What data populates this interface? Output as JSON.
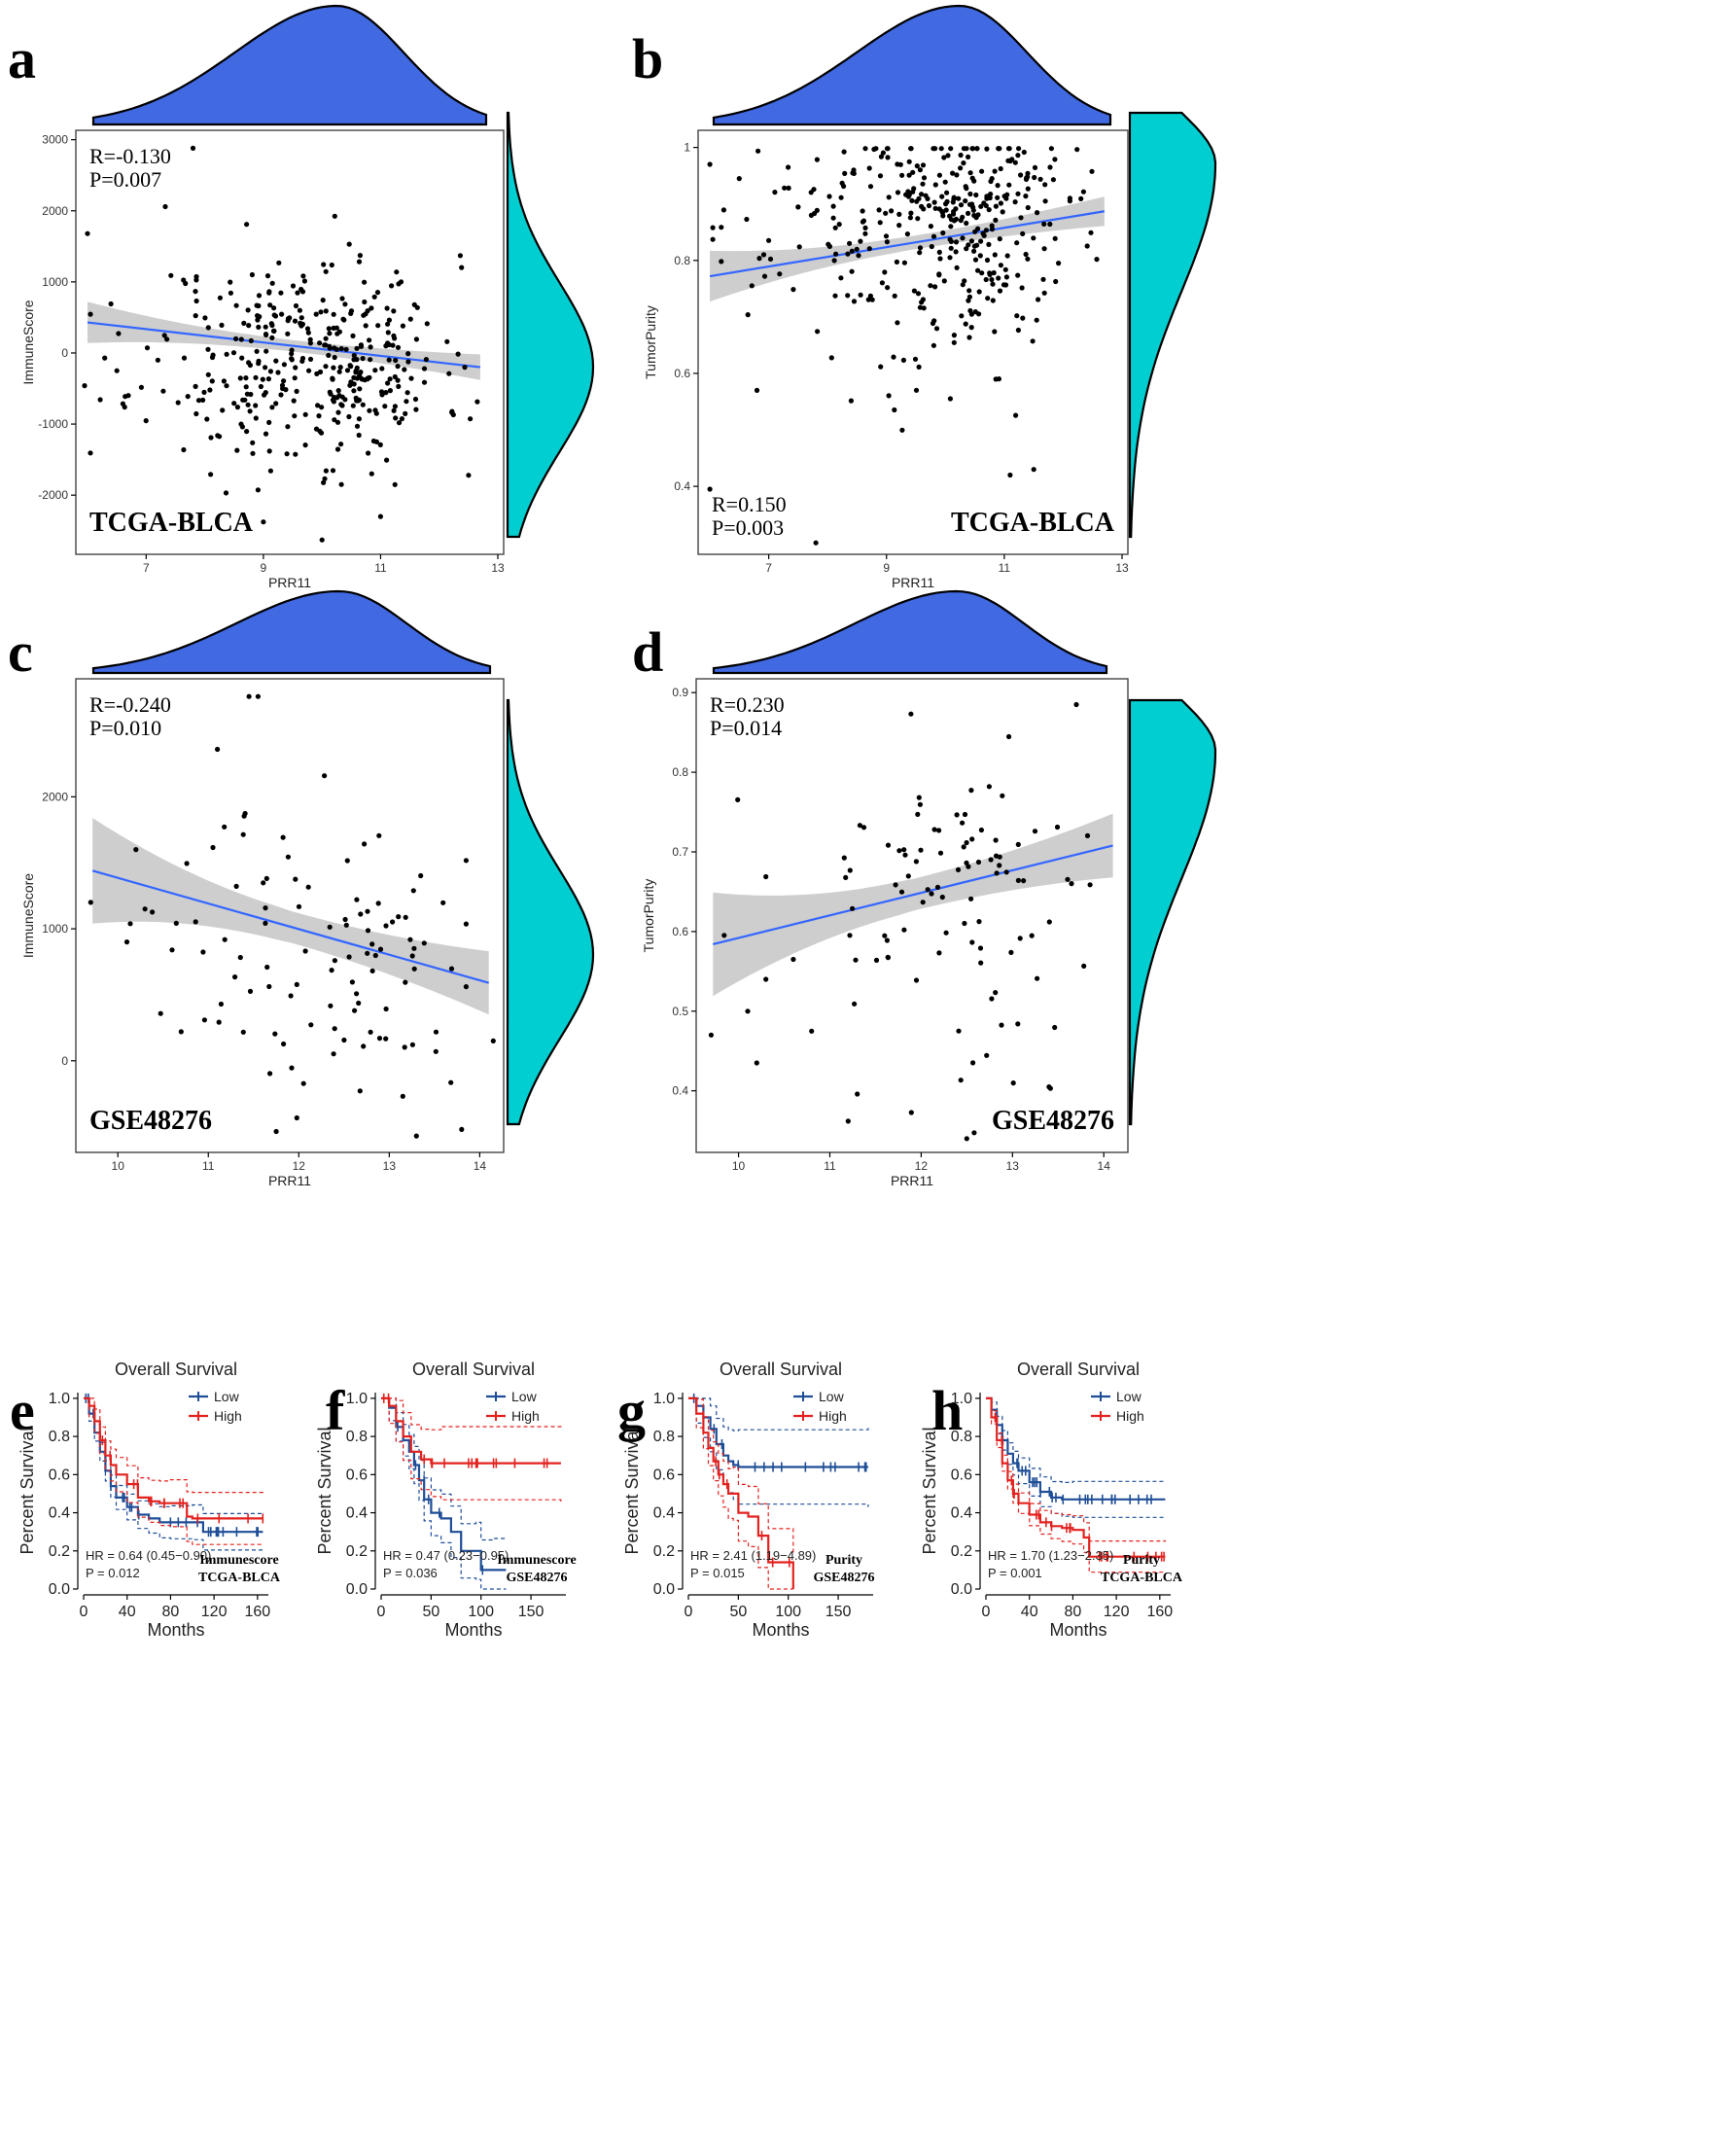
{
  "chart_data": [
    {
      "panel": "a",
      "type": "scatter",
      "x_label": "PRR11",
      "y_label": "ImmuneScore",
      "x_ticks": [
        7,
        9,
        11,
        13
      ],
      "y_ticks": [
        -2000,
        -1000,
        0,
        1000,
        2000,
        3000
      ],
      "xlim": [
        5.9,
        13.0
      ],
      "ylim": [
        -2750,
        3050
      ],
      "stat_r": "R=-0.130",
      "stat_p": "P=0.007",
      "cohort": "TCGA-BLCA",
      "fit": {
        "x": [
          6.0,
          12.7
        ],
        "y": [
          430,
          -200
        ],
        "ci_half": [
          290,
          160,
          80,
          180
        ]
      },
      "n_points": 380,
      "x_mean": 10.0,
      "x_sd": 1.2,
      "y_mean": -120,
      "y_sd": 750,
      "seed": 11,
      "extra_points": [
        [
          6.0,
          1680
        ],
        [
          5.95,
          -460
        ],
        [
          7.8,
          2880
        ],
        [
          10.0,
          -2630
        ],
        [
          11.0,
          -2300
        ],
        [
          12.5,
          -1720
        ],
        [
          6.4,
          690
        ],
        [
          6.5,
          -250
        ],
        [
          7.2,
          -100
        ]
      ],
      "x_density": "left-skew",
      "y_density": "normal"
    },
    {
      "panel": "b",
      "type": "scatter",
      "x_label": "PRR11",
      "y_label": "TumorPurity",
      "x_ticks": [
        7,
        9,
        11,
        13
      ],
      "y_ticks": [
        0.4,
        0.6,
        0.8,
        1.0
      ],
      "xlim": [
        5.9,
        13.0
      ],
      "ylim": [
        0.29,
        1.02
      ],
      "stat_r": "R=0.150",
      "stat_p": "P=0.003",
      "cohort": "TCGA-BLCA",
      "fit": {
        "x": [
          6.0,
          12.7
        ],
        "y": [
          0.772,
          0.887
        ],
        "ci_half": [
          0.045,
          0.02,
          0.012,
          0.026
        ]
      },
      "n_points": 380,
      "x_mean": 10.0,
      "x_sd": 1.2,
      "y_mean": 0.87,
      "y_sd": 0.1,
      "seed": 23,
      "extra_points": [
        [
          6.0,
          0.395
        ],
        [
          7.8,
          0.3
        ],
        [
          6.0,
          0.97
        ],
        [
          6.5,
          0.945
        ],
        [
          6.8,
          0.57
        ],
        [
          11.1,
          0.42
        ],
        [
          11.5,
          0.43
        ]
      ],
      "x_density": "left-skew",
      "y_density": "left-skew"
    },
    {
      "panel": "c",
      "type": "scatter",
      "x_label": "PRR11",
      "y_label": "ImmuneScore",
      "x_ticks": [
        10,
        11,
        12,
        13,
        14
      ],
      "y_ticks": [
        0,
        1000,
        2000
      ],
      "xlim": [
        9.6,
        14.2
      ],
      "ylim": [
        -650,
        2850
      ],
      "stat_r": "R=-0.240",
      "stat_p": "P=0.010",
      "cohort": "GSE48276",
      "fit": {
        "x": [
          9.72,
          14.1
        ],
        "y": [
          1440,
          590
        ],
        "ci_half": [
          400,
          150,
          120,
          240
        ]
      },
      "n_points": 100,
      "x_mean": 12.5,
      "x_sd": 0.8,
      "y_mean": 800,
      "y_sd": 560,
      "seed": 37,
      "extra_points": [
        [
          11.45,
          2760
        ],
        [
          11.55,
          2760
        ],
        [
          11.1,
          2360
        ],
        [
          13.3,
          -570
        ],
        [
          13.8,
          -520
        ],
        [
          9.7,
          1200
        ],
        [
          10.1,
          900
        ],
        [
          10.2,
          1600
        ],
        [
          10.3,
          1150
        ],
        [
          10.6,
          840
        ],
        [
          10.7,
          220
        ],
        [
          14.15,
          150
        ]
      ],
      "x_density": "left-skew",
      "y_density": "normal"
    },
    {
      "panel": "d",
      "type": "scatter",
      "x_label": "PRR11",
      "y_label": "TumorPurity",
      "x_ticks": [
        10,
        11,
        12,
        13,
        14
      ],
      "y_ticks": [
        0.4,
        0.5,
        0.6,
        0.7,
        0.8,
        0.9
      ],
      "xlim": [
        9.6,
        14.2
      ],
      "ylim": [
        0.33,
        0.91
      ],
      "stat_r": "R=0.230",
      "stat_p": "P=0.014",
      "cohort": "GSE48276",
      "fit": {
        "x": [
          9.72,
          14.1
        ],
        "y": [
          0.584,
          0.708
        ],
        "ci_half": [
          0.065,
          0.025,
          0.02,
          0.04
        ]
      },
      "n_points": 100,
      "x_mean": 12.5,
      "x_sd": 0.8,
      "y_mean": 0.66,
      "y_sd": 0.1,
      "seed": 53,
      "extra_points": [
        [
          9.7,
          0.47
        ],
        [
          10.1,
          0.5
        ],
        [
          10.2,
          0.435
        ],
        [
          10.3,
          0.54
        ],
        [
          10.6,
          0.565
        ],
        [
          10.8,
          0.475
        ],
        [
          12.5,
          0.34
        ],
        [
          13.7,
          0.885
        ],
        [
          13.4,
          0.405
        ]
      ],
      "x_density": "left-skew",
      "y_density": "left-skew"
    },
    {
      "panel": "e",
      "type": "line",
      "subtype": "kaplan-meier",
      "title": "Overall Survival",
      "xlabel": "Months",
      "ylabel": "Percent Survival",
      "x_ticks": [
        0,
        40,
        80,
        120,
        160
      ],
      "y_ticks": [
        "0.0",
        "0.2",
        "0.4",
        "0.6",
        "0.8",
        "1.0"
      ],
      "xlim": [
        0,
        170
      ],
      "ylim": [
        0,
        1.03
      ],
      "legend": [
        "Low",
        "High"
      ],
      "hr_text": "HR = 0.64 (0.45−0.90)",
      "p_text": "P = 0.012",
      "group_label": "Immunescore",
      "cohort_label": "TCGA-BLCA",
      "series": [
        {
          "name": "Low",
          "color": "#1f4e97",
          "x": [
            0,
            5,
            10,
            15,
            20,
            25,
            30,
            40,
            50,
            60,
            70,
            80,
            100,
            110,
            165
          ],
          "y": [
            1.0,
            0.92,
            0.82,
            0.72,
            0.62,
            0.54,
            0.48,
            0.43,
            0.39,
            0.37,
            0.35,
            0.35,
            0.35,
            0.3,
            0.3
          ],
          "ci_spread": 0.07,
          "ticks": 22
        },
        {
          "name": "High",
          "color": "#e3221f",
          "x": [
            0,
            5,
            10,
            15,
            20,
            25,
            30,
            40,
            50,
            60,
            70,
            80,
            95,
            100,
            165
          ],
          "y": [
            1.0,
            0.96,
            0.88,
            0.78,
            0.7,
            0.65,
            0.6,
            0.55,
            0.48,
            0.46,
            0.45,
            0.45,
            0.38,
            0.37,
            0.37
          ],
          "ci_spread": 0.1,
          "ticks": 14
        }
      ]
    },
    {
      "panel": "f",
      "type": "line",
      "subtype": "kaplan-meier",
      "title": "Overall Survival",
      "xlabel": "Months",
      "ylabel": "Percent Survival",
      "x_ticks": [
        0,
        50,
        100,
        150
      ],
      "y_ticks": [
        "0.0",
        "0.2",
        "0.4",
        "0.6",
        "0.8",
        "1.0"
      ],
      "xlim": [
        0,
        185
      ],
      "ylim": [
        0,
        1.03
      ],
      "legend": [
        "Low",
        "High"
      ],
      "hr_text": "HR = 0.47 (0.23−0.95)",
      "p_text": "P = 0.036",
      "group_label": "Immunescore",
      "cohort_label": "GSE48276",
      "series": [
        {
          "name": "Low",
          "color": "#1f4e97",
          "x": [
            0,
            8,
            15,
            22,
            28,
            33,
            38,
            43,
            50,
            60,
            70,
            80,
            95,
            100,
            113,
            125
          ],
          "y": [
            1.0,
            0.95,
            0.85,
            0.78,
            0.72,
            0.65,
            0.57,
            0.47,
            0.4,
            0.37,
            0.3,
            0.2,
            0.2,
            0.1,
            0.1,
            0.1
          ],
          "ci_spread": 0.12,
          "ticks": 6
        },
        {
          "name": "High",
          "color": "#e3221f",
          "x": [
            0,
            8,
            15,
            22,
            30,
            40,
            50,
            60,
            180
          ],
          "y": [
            1.0,
            0.96,
            0.88,
            0.8,
            0.72,
            0.68,
            0.66,
            0.66,
            0.66
          ],
          "ci_spread": 0.15,
          "ticks": 16
        }
      ]
    },
    {
      "panel": "g",
      "type": "line",
      "subtype": "kaplan-meier",
      "title": "Overall Survival",
      "xlabel": "Months",
      "ylabel": "Percent Survival",
      "x_ticks": [
        0,
        50,
        100,
        150
      ],
      "y_ticks": [
        "0.0",
        "0.2",
        "0.4",
        "0.6",
        "0.8",
        "1.0"
      ],
      "xlim": [
        0,
        185
      ],
      "ylim": [
        0,
        1.03
      ],
      "legend": [
        "Low",
        "High"
      ],
      "hr_text": "HR = 2.41 (1.19−4.89)",
      "p_text": "P = 0.015",
      "group_label": "Purity",
      "cohort_label": "GSE48276",
      "series": [
        {
          "name": "Low",
          "color": "#1f4e97",
          "x": [
            0,
            8,
            15,
            22,
            28,
            35,
            40,
            45,
            50,
            180
          ],
          "y": [
            1.0,
            0.96,
            0.9,
            0.84,
            0.76,
            0.7,
            0.67,
            0.65,
            0.64,
            0.64
          ],
          "ci_spread": 0.15,
          "ticks": 16
        },
        {
          "name": "High",
          "color": "#e3221f",
          "x": [
            0,
            8,
            15,
            20,
            25,
            30,
            35,
            40,
            45,
            50,
            60,
            70,
            80,
            105
          ],
          "y": [
            1.0,
            0.92,
            0.82,
            0.74,
            0.67,
            0.6,
            0.55,
            0.5,
            0.5,
            0.4,
            0.38,
            0.28,
            0.14,
            0.0
          ],
          "ci_spread": 0.13,
          "ticks": 6
        }
      ]
    },
    {
      "panel": "h",
      "type": "line",
      "subtype": "kaplan-meier",
      "title": "Overall Survival",
      "xlabel": "Months",
      "ylabel": "Percent Survival",
      "x_ticks": [
        0,
        40,
        80,
        120,
        160
      ],
      "y_ticks": [
        "0.0",
        "0.2",
        "0.4",
        "0.6",
        "0.8",
        "1.0"
      ],
      "xlim": [
        0,
        170
      ],
      "ylim": [
        0,
        1.03
      ],
      "legend": [
        "Low",
        "High"
      ],
      "hr_text": "HR = 1.70 (1.23−2.35)",
      "p_text": "P = 0.001",
      "group_label": "Purity",
      "cohort_label": "TCGA-BLCA",
      "series": [
        {
          "name": "Low",
          "color": "#1f4e97",
          "x": [
            0,
            5,
            10,
            15,
            20,
            25,
            30,
            40,
            50,
            60,
            70,
            80,
            165
          ],
          "y": [
            1.0,
            0.94,
            0.86,
            0.78,
            0.71,
            0.66,
            0.62,
            0.56,
            0.51,
            0.48,
            0.47,
            0.47,
            0.47
          ],
          "ci_spread": 0.07,
          "ticks": 26
        },
        {
          "name": "High",
          "color": "#e3221f",
          "x": [
            0,
            5,
            10,
            15,
            20,
            25,
            30,
            40,
            50,
            60,
            70,
            80,
            90,
            95,
            165
          ],
          "y": [
            1.0,
            0.9,
            0.78,
            0.66,
            0.57,
            0.5,
            0.45,
            0.39,
            0.35,
            0.33,
            0.32,
            0.31,
            0.27,
            0.17,
            0.17
          ],
          "ci_spread": 0.06,
          "ticks": 22
        }
      ]
    }
  ],
  "colors": {
    "x_density": "#4169e1",
    "y_density": "#00ced1",
    "point": "#000000",
    "fit_line": "#3366ff",
    "ci_band": "#bdbdbd"
  }
}
